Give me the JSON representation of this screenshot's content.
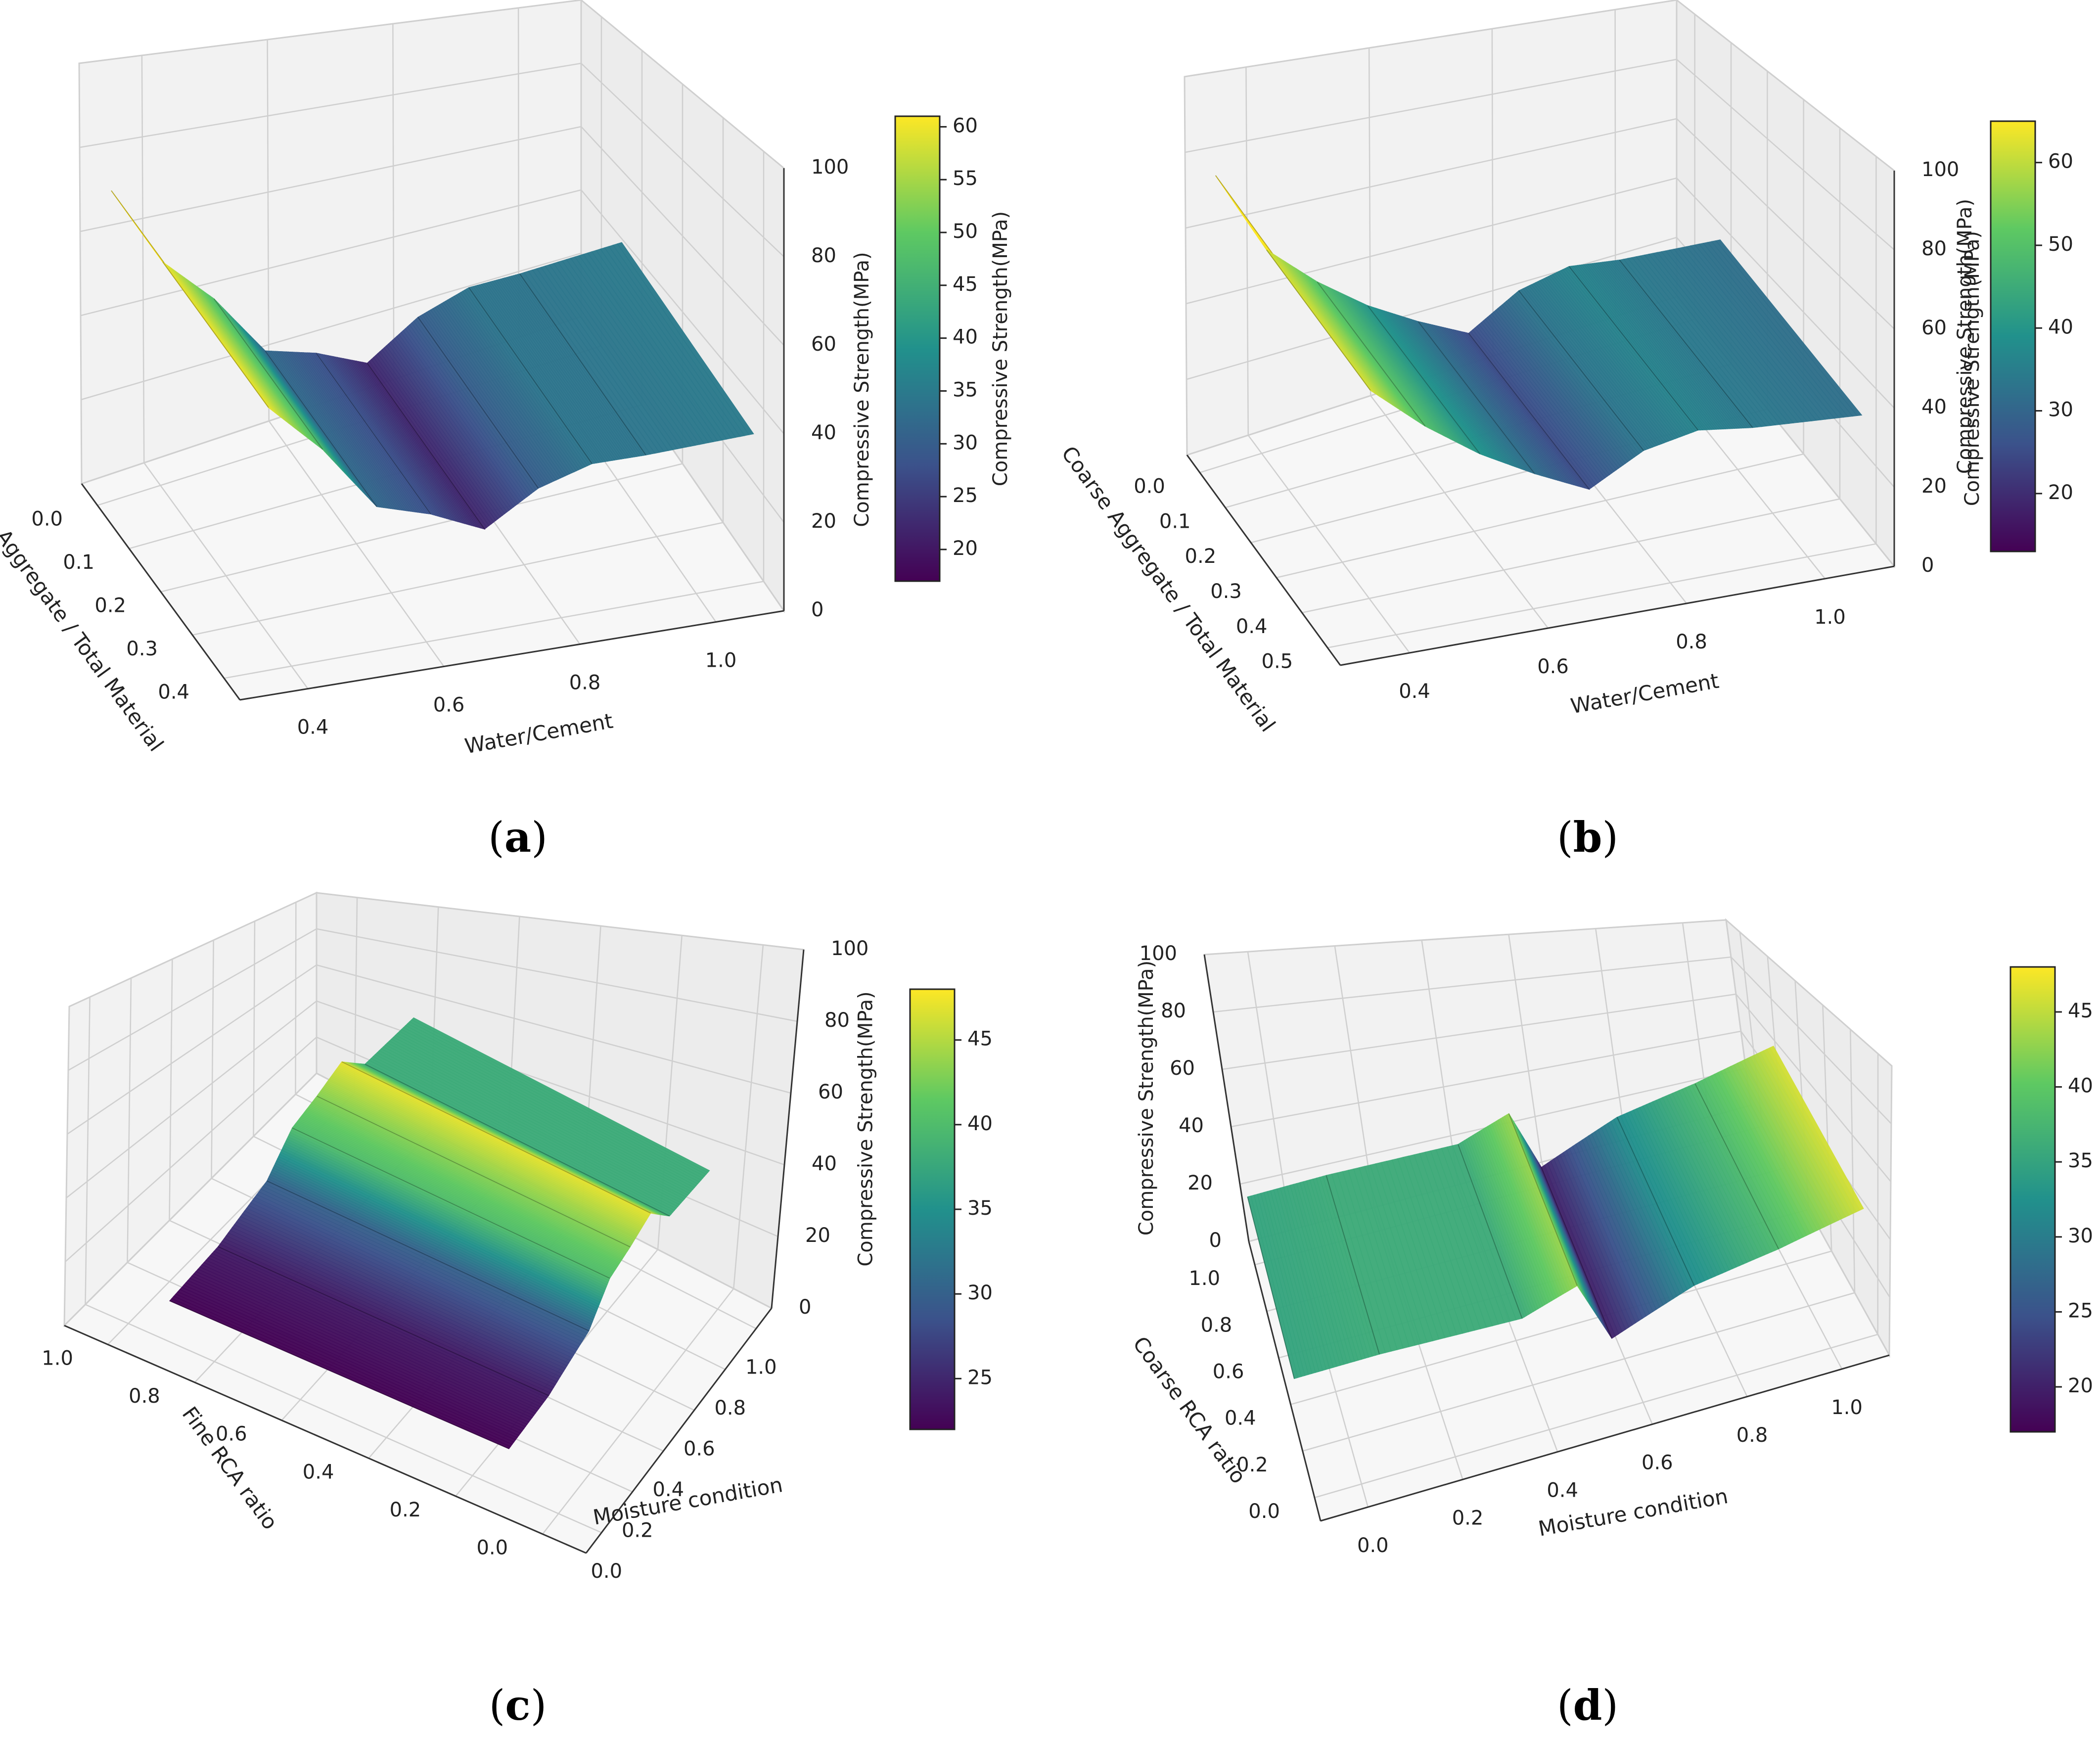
{
  "figure": {
    "panel_letters": [
      "a",
      "b",
      "c",
      "d"
    ],
    "colormap": [
      "#440154",
      "#3b528b",
      "#21918c",
      "#5ec962",
      "#fde725"
    ]
  },
  "chart_data": [
    {
      "id": "a",
      "type": "surface3d",
      "xlabel": "Fine Aggregate  / Total Material",
      "xticks": [
        "0.0",
        "0.1",
        "0.2",
        "0.3",
        "0.4"
      ],
      "ylabel": "Water/Cement",
      "yticks": [
        "0.4",
        "0.6",
        "0.8",
        "1.0"
      ],
      "zlabel": "Compressive Strength(MPa)",
      "zticks": [
        "0",
        "20",
        "40",
        "60",
        "80",
        "100"
      ],
      "zlim": [
        0,
        100
      ],
      "colorbar": {
        "label": "Compressive Strength(MPa)",
        "ticks": [
          "20",
          "25",
          "30",
          "35",
          "40",
          "45",
          "50",
          "55",
          "60"
        ],
        "range": [
          17,
          61
        ]
      },
      "surface_profile": [
        {
          "fraction": 0.0,
          "strength": 80
        },
        {
          "fraction": 0.1,
          "strength": 60
        },
        {
          "fraction": 0.2,
          "strength": 48
        },
        {
          "fraction": 0.3,
          "strength": 32
        },
        {
          "fraction": 0.4,
          "strength": 28
        },
        {
          "fraction": 0.5,
          "strength": 22
        },
        {
          "fraction": 0.6,
          "strength": 30
        },
        {
          "fraction": 0.7,
          "strength": 34
        },
        {
          "fraction": 0.8,
          "strength": 34
        },
        {
          "fraction": 1.0,
          "strength": 35
        }
      ]
    },
    {
      "id": "b",
      "type": "surface3d",
      "xlabel": "Coarse Aggregate  / Total Material",
      "xticks": [
        "0.0",
        "0.1",
        "0.2",
        "0.3",
        "0.4",
        "0.5"
      ],
      "ylabel": "Water/Cement",
      "yticks": [
        "0.4",
        "0.6",
        "0.8",
        "1.0"
      ],
      "zlabel": "Compressive Strength(MPa)",
      "zticks": [
        "0",
        "20",
        "40",
        "60",
        "80",
        "100"
      ],
      "zlim": [
        0,
        100
      ],
      "colorbar": {
        "label": "Compressive Strength(MPa)",
        "ticks": [
          "20",
          "30",
          "40",
          "50",
          "60"
        ],
        "range": [
          13,
          65
        ]
      },
      "surface_profile": [
        {
          "fraction": 0.0,
          "strength": 85
        },
        {
          "fraction": 0.1,
          "strength": 62
        },
        {
          "fraction": 0.2,
          "strength": 50
        },
        {
          "fraction": 0.3,
          "strength": 40
        },
        {
          "fraction": 0.4,
          "strength": 32
        },
        {
          "fraction": 0.5,
          "strength": 25
        },
        {
          "fraction": 0.6,
          "strength": 33
        },
        {
          "fraction": 0.7,
          "strength": 36
        },
        {
          "fraction": 0.8,
          "strength": 34
        },
        {
          "fraction": 1.0,
          "strength": 32
        }
      ]
    },
    {
      "id": "c",
      "type": "surface3d",
      "xlabel": "Fine RCA ratio",
      "xticks": [
        "1.0",
        "0.8",
        "0.6",
        "0.4",
        "0.2",
        "0.0"
      ],
      "ylabel": "Moisture condition",
      "yticks": [
        "0.0",
        "0.2",
        "0.4",
        "0.6",
        "0.8",
        "1.0"
      ],
      "zlabel": "Compressive Strength(MPa)",
      "zticks": [
        "0",
        "20",
        "40",
        "60",
        "80",
        "100"
      ],
      "zlim": [
        0,
        100
      ],
      "colorbar": {
        "label": "",
        "ticks": [
          "25",
          "30",
          "35",
          "40",
          "45"
        ],
        "range": [
          22,
          48
        ]
      },
      "surface_profile": [
        {
          "fraction": 0.0,
          "strength": 22
        },
        {
          "fraction": 0.2,
          "strength": 24
        },
        {
          "fraction": 0.4,
          "strength": 30
        },
        {
          "fraction": 0.5,
          "strength": 40
        },
        {
          "fraction": 0.6,
          "strength": 43
        },
        {
          "fraction": 0.7,
          "strength": 47
        },
        {
          "fraction": 0.8,
          "strength": 38
        },
        {
          "fraction": 1.0,
          "strength": 38
        }
      ]
    },
    {
      "id": "d",
      "type": "surface3d",
      "xlabel": "Coarse RCA ratio",
      "xticks": [
        "1.0",
        "0.8",
        "0.6",
        "0.4",
        "0.2",
        "0.0"
      ],
      "ylabel": "Moisture condition",
      "yticks": [
        "0.0",
        "0.2",
        "0.4",
        "0.6",
        "0.8",
        "1.0"
      ],
      "zlabel": "Compressive Strength(MPa)",
      "zticks": [
        "0",
        "20",
        "40",
        "60",
        "80",
        "100"
      ],
      "zlim": [
        0,
        100
      ],
      "colorbar": {
        "label": "",
        "ticks": [
          "20",
          "25",
          "30",
          "35",
          "40",
          "45"
        ],
        "range": [
          17,
          48
        ]
      },
      "surface_profile": [
        {
          "fraction": 0.0,
          "strength": 35
        },
        {
          "fraction": 0.15,
          "strength": 36
        },
        {
          "fraction": 0.4,
          "strength": 36
        },
        {
          "fraction": 0.5,
          "strength": 43
        },
        {
          "fraction": 0.55,
          "strength": 20
        },
        {
          "fraction": 0.7,
          "strength": 32
        },
        {
          "fraction": 0.85,
          "strength": 38
        },
        {
          "fraction": 1.0,
          "strength": 46
        }
      ]
    }
  ]
}
